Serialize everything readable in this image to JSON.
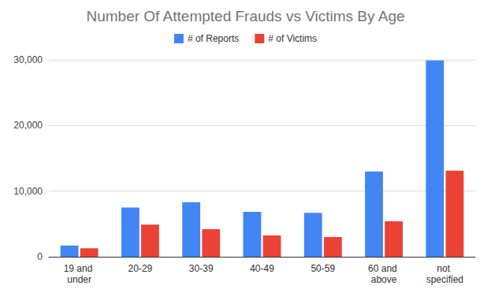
{
  "chart_data": {
    "type": "bar",
    "title": "Number Of Attempted Frauds vs Victims By Age",
    "categories": [
      "19 and under",
      "20-29",
      "30-39",
      "40-49",
      "50-59",
      "60 and above",
      "not specified"
    ],
    "series": [
      {
        "name": "# of Reports",
        "color": "#4285f4",
        "values": [
          1700,
          7500,
          8300,
          6850,
          6700,
          13000,
          29900
        ]
      },
      {
        "name": "# of Victims",
        "color": "#ea4335",
        "values": [
          1300,
          4900,
          4200,
          3250,
          3000,
          5400,
          13100
        ]
      }
    ],
    "ylim": [
      0,
      30000
    ],
    "yticks": [
      0,
      {
        "value": 10000,
        "label": "10,000"
      },
      {
        "value": 20000,
        "label": "20,000"
      },
      {
        "value": 30000,
        "label": "30,000"
      }
    ],
    "grid": true,
    "legend": "top"
  }
}
